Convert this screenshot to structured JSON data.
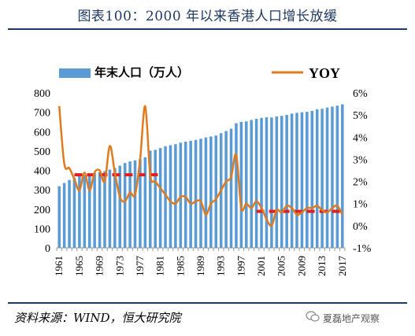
{
  "header": {
    "title": "图表100：2000 年以来香港人口增长放缓"
  },
  "footer": {
    "source": "资料来源：WIND，恒大研究院",
    "watermark": "夏磊地产观察"
  },
  "colors": {
    "bars": "#5b9bd5",
    "line": "#e07a1f",
    "dash": "#e02020",
    "title": "#1f3864"
  },
  "chart_data": {
    "type": "bar",
    "title": "",
    "legend": {
      "position": "top",
      "entries": [
        "年末人口（万人）",
        "YOY"
      ]
    },
    "x": [
      1961,
      1962,
      1963,
      1964,
      1965,
      1966,
      1967,
      1968,
      1969,
      1970,
      1971,
      1972,
      1973,
      1974,
      1975,
      1976,
      1977,
      1978,
      1979,
      1980,
      1981,
      1982,
      1983,
      1984,
      1985,
      1986,
      1987,
      1988,
      1989,
      1990,
      1991,
      1992,
      1993,
      1994,
      1995,
      1996,
      1997,
      1998,
      1999,
      2000,
      2001,
      2002,
      2003,
      2004,
      2005,
      2006,
      2007,
      2008,
      2009,
      2010,
      2011,
      2012,
      2013,
      2014,
      2015,
      2016,
      2017
    ],
    "x_tick_labels": [
      "1961",
      "1965",
      "1969",
      "1973",
      "1977",
      "1981",
      "1985",
      "1989",
      "1993",
      "1997",
      "2001",
      "2005",
      "2009",
      "2013",
      "2017"
    ],
    "y_left": {
      "ylim": [
        0,
        800
      ],
      "ticks": [
        0,
        100,
        200,
        300,
        400,
        500,
        600,
        700,
        800
      ]
    },
    "y_right": {
      "ylim": [
        -1,
        6
      ],
      "ticks": [
        "-1%",
        "0%",
        "1%",
        "2%",
        "3%",
        "4%",
        "5%",
        "6%"
      ]
    },
    "series": [
      {
        "name": "年末人口（万人）",
        "type": "bar",
        "axis": "left",
        "values": [
          318,
          335,
          350,
          362,
          370,
          375,
          380,
          385,
          391,
          396,
          404,
          412,
          424,
          438,
          446,
          452,
          458,
          467,
          502,
          506,
          515,
          524,
          530,
          535,
          543,
          548,
          552,
          557,
          563,
          570,
          575,
          580,
          592,
          603,
          615,
          643,
          650,
          653,
          660,
          666,
          671,
          674,
          673,
          678,
          681,
          686,
          693,
          697,
          700,
          702,
          707,
          715,
          718,
          724,
          729,
          734,
          741
        ]
      },
      {
        "name": "YOY",
        "type": "line",
        "axis": "right",
        "values": [
          5.4,
          2.8,
          2.6,
          2.1,
          1.6,
          2.4,
          1.6,
          2.4,
          2.5,
          2.0,
          3.6,
          2.4,
          1.3,
          1.1,
          1.5,
          1.4,
          3.0,
          5.4,
          2.3,
          2.0,
          1.7,
          1.4,
          1.1,
          1.0,
          1.3,
          1.3,
          1.0,
          1.1,
          1.1,
          0.5,
          1.0,
          1.2,
          1.6,
          2.0,
          2.2,
          3.2,
          0.8,
          1.0,
          0.8,
          1.1,
          0.8,
          0.3,
          0.0,
          0.7,
          0.6,
          0.9,
          0.8,
          0.5,
          0.6,
          0.8,
          0.8,
          0.9,
          0.7,
          0.6,
          0.8,
          0.9,
          0.5
        ]
      }
    ],
    "reference_lines": [
      {
        "axis": "right",
        "value": 2.3,
        "x_from": 1964,
        "x_to": 1981
      },
      {
        "axis": "right",
        "value": 0.65,
        "x_from": 2000,
        "x_to": 2017
      }
    ]
  }
}
